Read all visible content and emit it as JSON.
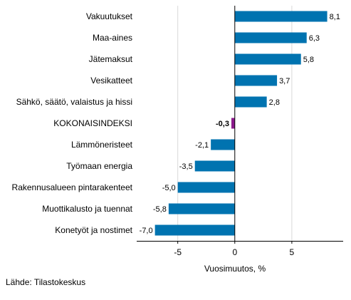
{
  "chart_data": {
    "type": "bar",
    "orientation": "horizontal",
    "categories": [
      "Vakuutukset",
      "Maa-aines",
      "Jätemaksut",
      "Vesikatteet",
      "Sähkö, säätö, valaistus ja hissi",
      "KOKONAISINDEKSI",
      "Lämmöneristeet",
      "Työmaan energia",
      "Rakennusalueen pintarakenteet",
      "Muottikalusto ja tuennat",
      "Konetyöt ja nostimet"
    ],
    "values": [
      8.1,
      6.3,
      5.8,
      3.7,
      2.8,
      -0.3,
      -2.1,
      -3.5,
      -5.0,
      -5.8,
      -7.0
    ],
    "value_labels": [
      "8,1",
      "6,3",
      "5,8",
      "3,7",
      "2,8",
      "-0,3",
      "-2,1",
      "-3,5",
      "-5,0",
      "-5,8",
      "-7,0"
    ],
    "highlight_index": 5,
    "xlim": [
      -8.6,
      9.5
    ],
    "xticks": [
      -5,
      0,
      5
    ],
    "xtick_labels": [
      "-5",
      "0",
      "5"
    ],
    "xlabel": "Vuosimuutos, %",
    "grid": "vertical",
    "colors": {
      "bar": "#0073b0",
      "highlight": "#8b1a8b",
      "grid": "#d9d9d9",
      "axis": "#000000"
    }
  },
  "source": "Lähde: Tilastokeskus"
}
